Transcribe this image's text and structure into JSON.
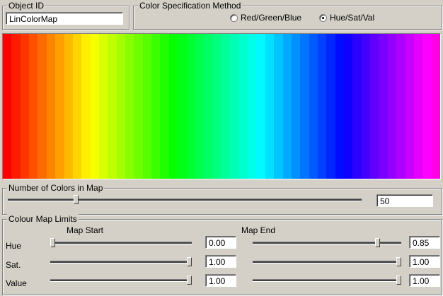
{
  "object_id": {
    "legend": "Object ID",
    "value": "LinColorMap"
  },
  "color_spec": {
    "legend": "Color Specification Method",
    "options": [
      {
        "label": "Red/Green/Blue",
        "selected": false
      },
      {
        "label": "Hue/Sat/Val",
        "selected": true
      }
    ]
  },
  "color_map": {
    "hue_start": 0.0,
    "hue_end": 0.85,
    "saturation": 1.0,
    "value": 1.0,
    "count": 50
  },
  "num_colors": {
    "legend": "Number of Colors in Map",
    "value": "50",
    "slider_min": 2,
    "slider_max": 256,
    "slider_value": 50
  },
  "limits": {
    "legend": "Colour Map Limits",
    "start_header": "Map Start",
    "end_header": "Map End",
    "rows": [
      {
        "label": "Hue",
        "start_value": "0.00",
        "start_fraction": 0.0,
        "end_value": "0.85",
        "end_fraction": 0.85
      },
      {
        "label": "Sat.",
        "start_value": "1.00",
        "start_fraction": 1.0,
        "end_value": "1.00",
        "end_fraction": 1.0
      },
      {
        "label": "Value",
        "start_value": "1.00",
        "start_fraction": 1.0,
        "end_value": "1.00",
        "end_fraction": 1.0
      }
    ]
  }
}
